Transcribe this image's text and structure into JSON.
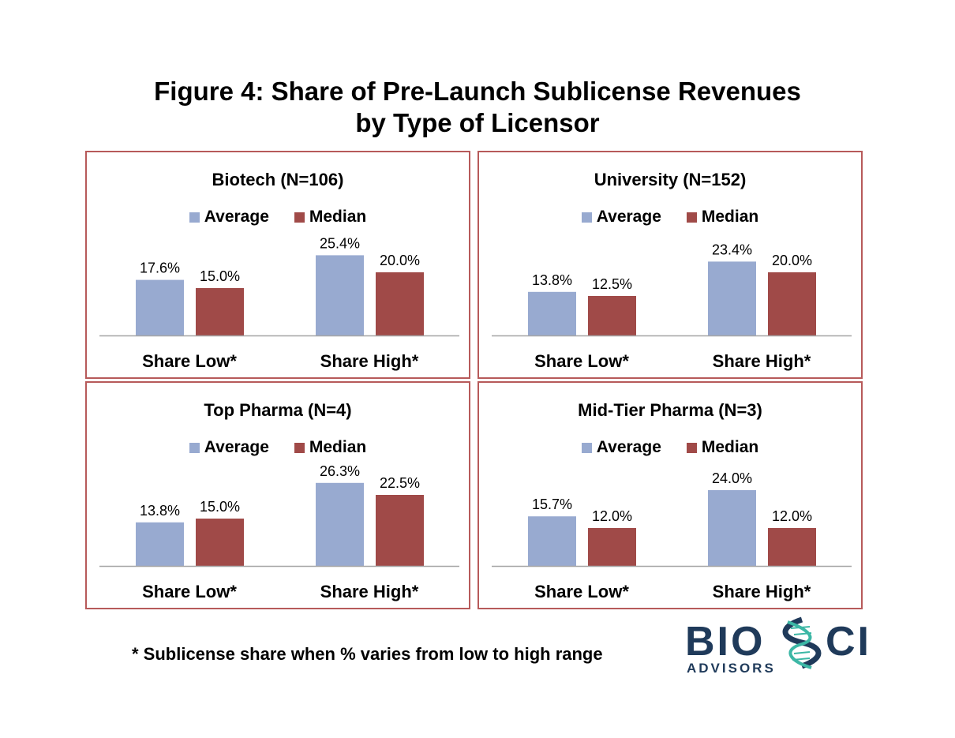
{
  "figure": {
    "title_line1": "Figure 4:  Share of Pre-Launch Sublicense Revenues",
    "title_line2": "by Type of Licensor"
  },
  "colors": {
    "average": "#98aad0",
    "median": "#a04a48",
    "border": "#b75a5a",
    "axis": "#a6a6a6"
  },
  "chart_data": [
    {
      "type": "bar",
      "title": "Biotech (N=106)",
      "categories": [
        "Share Low*",
        "Share High*"
      ],
      "series": [
        {
          "name": "Average",
          "values": [
            17.6,
            25.4
          ],
          "labels": [
            "17.6%",
            "25.4%"
          ]
        },
        {
          "name": "Median",
          "values": [
            15.0,
            20.0
          ],
          "labels": [
            "15.0%",
            "20.0%"
          ]
        }
      ],
      "ylim": [
        0,
        30
      ],
      "legend": "top"
    },
    {
      "type": "bar",
      "title": "University (N=152)",
      "categories": [
        "Share Low*",
        "Share High*"
      ],
      "series": [
        {
          "name": "Average",
          "values": [
            13.8,
            23.4
          ],
          "labels": [
            "13.8%",
            "23.4%"
          ]
        },
        {
          "name": "Median",
          "values": [
            12.5,
            20.0
          ],
          "labels": [
            "12.5%",
            "20.0%"
          ]
        }
      ],
      "ylim": [
        0,
        30
      ],
      "legend": "top"
    },
    {
      "type": "bar",
      "title": "Top Pharma (N=4)",
      "categories": [
        "Share Low*",
        "Share High*"
      ],
      "series": [
        {
          "name": "Average",
          "values": [
            13.8,
            26.3
          ],
          "labels": [
            "13.8%",
            "26.3%"
          ]
        },
        {
          "name": "Median",
          "values": [
            15.0,
            22.5
          ],
          "labels": [
            "15.0%",
            "22.5%"
          ]
        }
      ],
      "ylim": [
        0,
        30
      ],
      "legend": "top"
    },
    {
      "type": "bar",
      "title": "Mid-Tier Pharma (N=3)",
      "categories": [
        "Share Low*",
        "Share High*"
      ],
      "series": [
        {
          "name": "Average",
          "values": [
            15.7,
            24.0
          ],
          "labels": [
            "15.7%",
            "24.0%"
          ]
        },
        {
          "name": "Median",
          "values": [
            12.0,
            12.0
          ],
          "labels": [
            "12.0%",
            "12.0%"
          ]
        }
      ],
      "ylim": [
        0,
        30
      ],
      "legend": "top"
    }
  ],
  "footnote": "* Sublicense share when % varies from low to high range",
  "logo": {
    "word_left": "BIO",
    "word_right": "CI",
    "subtitle": "ADVISORS"
  }
}
